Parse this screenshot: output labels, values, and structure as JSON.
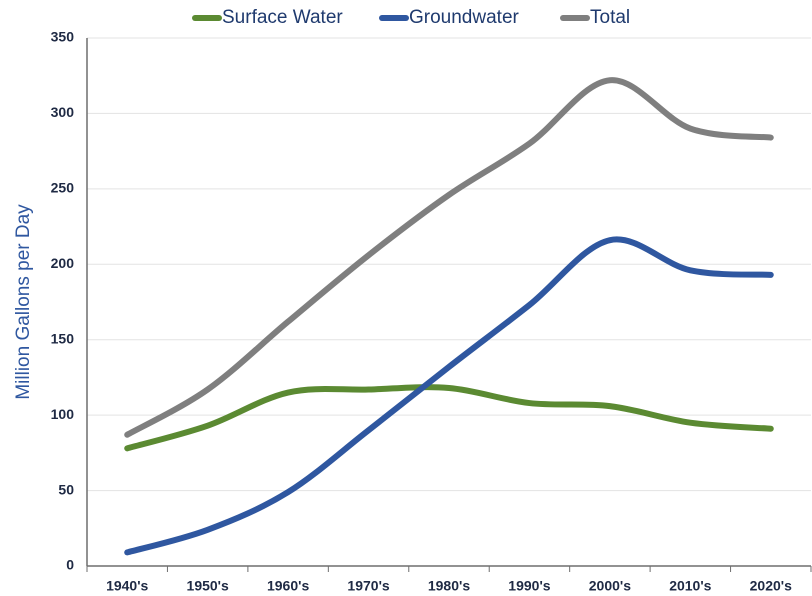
{
  "chart_data": {
    "type": "line",
    "y_label": "Million Gallons per Day",
    "categories": [
      "1940's",
      "1950's",
      "1960's",
      "1970's",
      "1980's",
      "1990's",
      "2000's",
      "2010's",
      "2020's"
    ],
    "series": [
      {
        "name": "Surface Water",
        "color": "#5b8a32",
        "values": [
          78,
          93,
          115,
          117,
          118,
          108,
          106,
          95,
          91
        ]
      },
      {
        "name": "Groundwater",
        "color": "#2f57a0",
        "values": [
          9,
          24,
          49,
          90,
          132,
          173,
          216,
          196,
          193
        ]
      },
      {
        "name": "Total",
        "color": "#7f7f7f",
        "values": [
          87,
          117,
          162,
          206,
          246,
          280,
          322,
          290,
          284
        ]
      }
    ],
    "ylim": [
      0,
      350
    ],
    "yticks": [
      0,
      50,
      100,
      150,
      200,
      250,
      300,
      350
    ],
    "grid": true,
    "legend": "top"
  }
}
